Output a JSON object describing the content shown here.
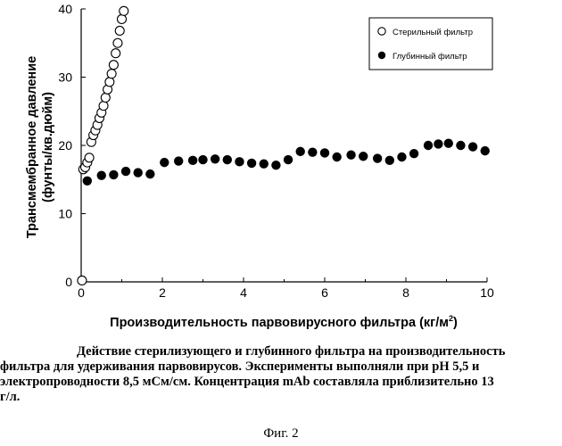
{
  "chart_data": {
    "type": "scatter",
    "xlabel": "Производительность парвовирусного фильтра (кг/м",
    "xlabel_sup": "2",
    "xlabel_end": ")",
    "ylabel_line1": "Трансмембранное давление",
    "ylabel_line2": "(фунты/кв.дюйм)",
    "xlim": [
      0,
      10
    ],
    "ylim": [
      0,
      40
    ],
    "xticks": [
      "0",
      "2",
      "4",
      "6",
      "8",
      "10"
    ],
    "yticks": [
      "0",
      "10",
      "20",
      "30",
      "40"
    ],
    "grid": false,
    "legend_position": "top-right",
    "series": [
      {
        "name": "Стерильный фильтр",
        "marker": "open-circle",
        "points": [
          [
            0.02,
            0.2
          ],
          [
            0.05,
            16.5
          ],
          [
            0.1,
            16.8
          ],
          [
            0.15,
            17.5
          ],
          [
            0.2,
            18.2
          ],
          [
            0.25,
            20.5
          ],
          [
            0.3,
            21.5
          ],
          [
            0.35,
            22.2
          ],
          [
            0.4,
            23.0
          ],
          [
            0.45,
            24.0
          ],
          [
            0.5,
            24.8
          ],
          [
            0.55,
            25.8
          ],
          [
            0.6,
            27.0
          ],
          [
            0.65,
            28.2
          ],
          [
            0.7,
            29.3
          ],
          [
            0.75,
            30.5
          ],
          [
            0.8,
            31.8
          ],
          [
            0.85,
            33.5
          ],
          [
            0.9,
            35.0
          ],
          [
            0.95,
            36.8
          ],
          [
            1.0,
            38.5
          ],
          [
            1.05,
            39.7
          ]
        ]
      },
      {
        "name": "Глубинный фильтр",
        "marker": "filled-circle",
        "points": [
          [
            0.15,
            14.8
          ],
          [
            0.5,
            15.6
          ],
          [
            0.8,
            15.7
          ],
          [
            1.1,
            16.2
          ],
          [
            1.4,
            16.0
          ],
          [
            1.7,
            15.8
          ],
          [
            2.05,
            17.5
          ],
          [
            2.4,
            17.7
          ],
          [
            2.75,
            17.8
          ],
          [
            3.0,
            17.9
          ],
          [
            3.3,
            18.0
          ],
          [
            3.6,
            17.9
          ],
          [
            3.9,
            17.6
          ],
          [
            4.2,
            17.4
          ],
          [
            4.5,
            17.3
          ],
          [
            4.8,
            17.1
          ],
          [
            5.1,
            17.9
          ],
          [
            5.4,
            19.1
          ],
          [
            5.7,
            19.0
          ],
          [
            6.0,
            18.9
          ],
          [
            6.3,
            18.3
          ],
          [
            6.65,
            18.6
          ],
          [
            6.95,
            18.4
          ],
          [
            7.3,
            18.1
          ],
          [
            7.6,
            17.8
          ],
          [
            7.9,
            18.3
          ],
          [
            8.2,
            18.8
          ],
          [
            8.55,
            20.0
          ],
          [
            8.8,
            20.2
          ],
          [
            9.05,
            20.3
          ],
          [
            9.35,
            20.0
          ],
          [
            9.65,
            19.8
          ],
          [
            9.95,
            19.2
          ]
        ]
      }
    ]
  },
  "caption": {
    "line1": "Действие стерилизующего и глубинного фильтра на производительность",
    "line2": "фильтра для удерживания парвовирусов. Эксперименты выполняли при pH 5,5 и",
    "line3": "электропроводности 8,5 мСм/см. Концентрация mAb составляла приблизительно 13",
    "line4": "г/л."
  },
  "figure_label": "Фиг. 2"
}
